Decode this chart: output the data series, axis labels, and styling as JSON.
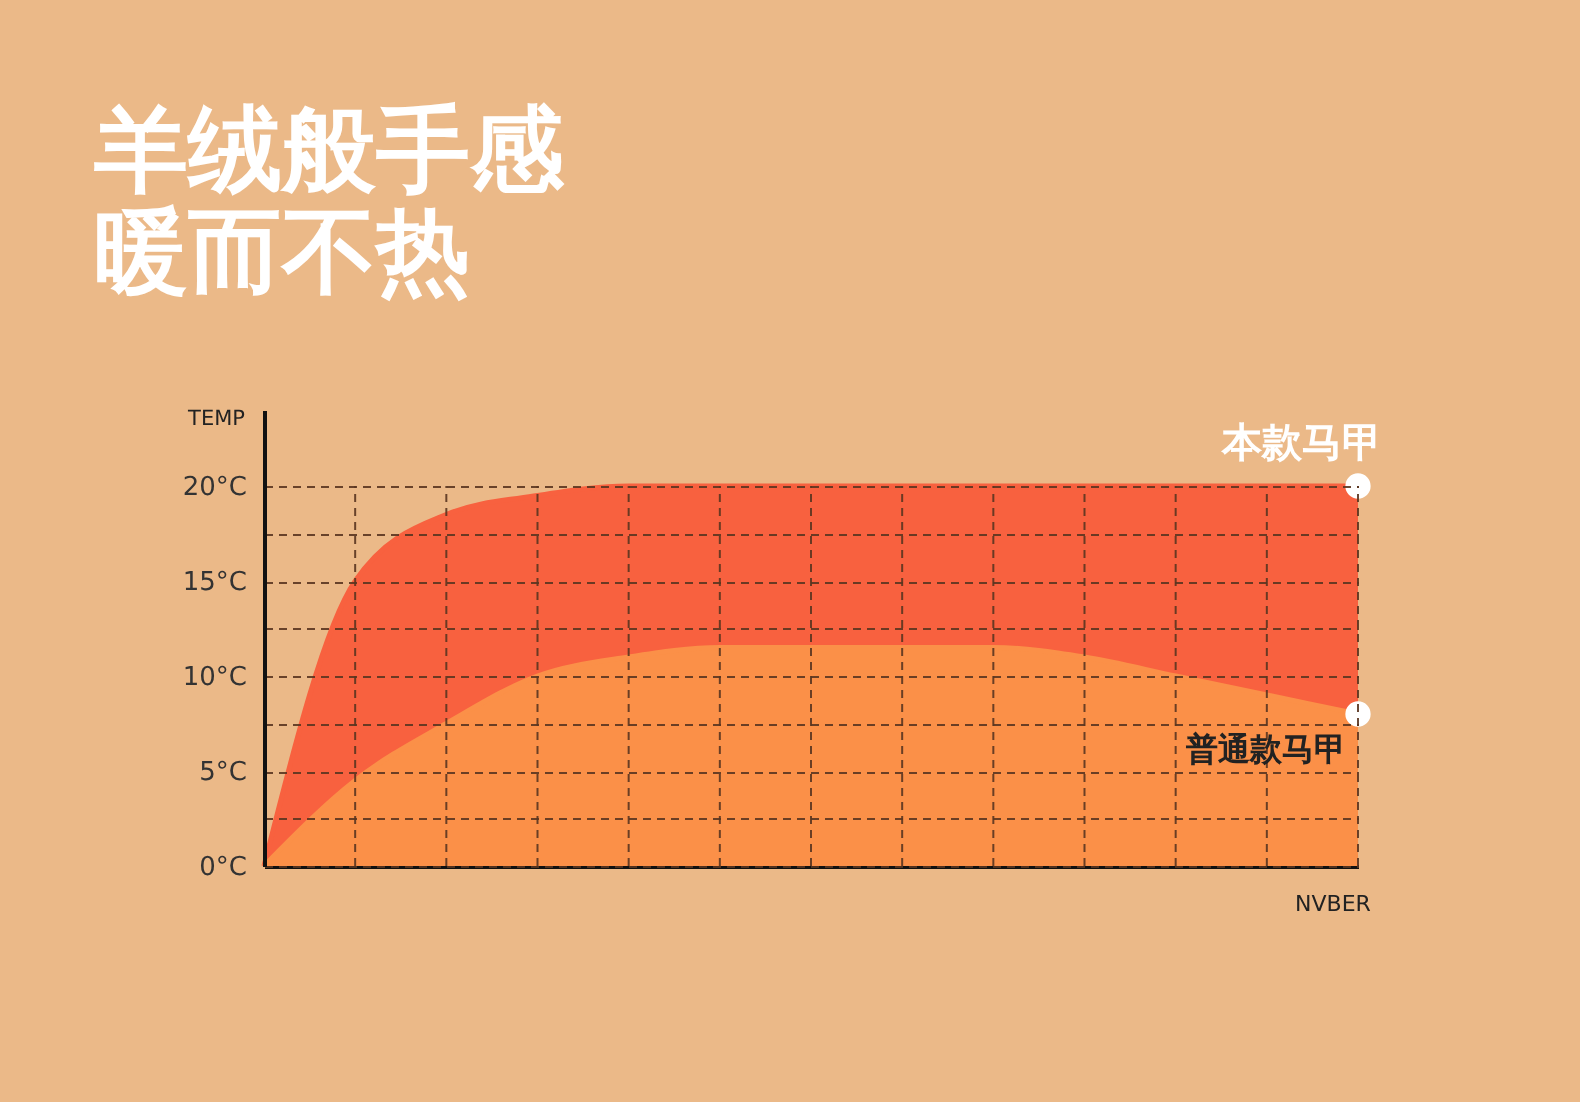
{
  "chart_data": {
    "type": "area",
    "title": "羊绒般手感",
    "subtitle": "暖而不热",
    "ylabel": "TEMP",
    "xlabel": "NVBER",
    "categories": [
      null,
      null,
      null,
      null,
      null,
      null,
      null,
      null,
      null,
      null,
      null,
      null,
      null
    ],
    "series": [
      {
        "name": "本款马甲",
        "color": "#f8613f",
        "values": [
          0,
          15,
          18.5,
          19.5,
          20,
          20,
          20,
          20,
          20,
          20,
          20,
          20,
          20
        ]
      },
      {
        "name": "普通款马甲",
        "color": "#fb9048",
        "values": [
          0,
          4.5,
          7.5,
          10,
          11,
          11.5,
          11.5,
          11.5,
          11.5,
          11,
          10,
          9,
          8
        ]
      },
      {
        "type": "scatter",
        "color": "#ffffff",
        "marker": "circle",
        "values": [
          null,
          null,
          null,
          null,
          null,
          null,
          null,
          null,
          null,
          null,
          null,
          null,
          20
        ]
      },
      {
        "type": "scatter",
        "color": "#ffffff",
        "marker": "circle",
        "values": [
          null,
          null,
          null,
          null,
          null,
          null,
          null,
          null,
          null,
          null,
          null,
          null,
          8
        ]
      }
    ],
    "ylim": [
      0,
      24
    ],
    "yticks": [
      {
        "value": 0,
        "label": "0°C"
      },
      {
        "value": 2.5,
        "label": null
      },
      {
        "value": 5,
        "label": "5°C"
      },
      {
        "value": 7.5,
        "label": null
      },
      {
        "value": 10,
        "label": "10°C"
      },
      {
        "value": 12.5,
        "label": null
      },
      {
        "value": 15,
        "label": "15°C"
      },
      {
        "value": 17.5,
        "label": null
      },
      {
        "value": 20,
        "label": "20°C"
      }
    ],
    "grid": true
  }
}
